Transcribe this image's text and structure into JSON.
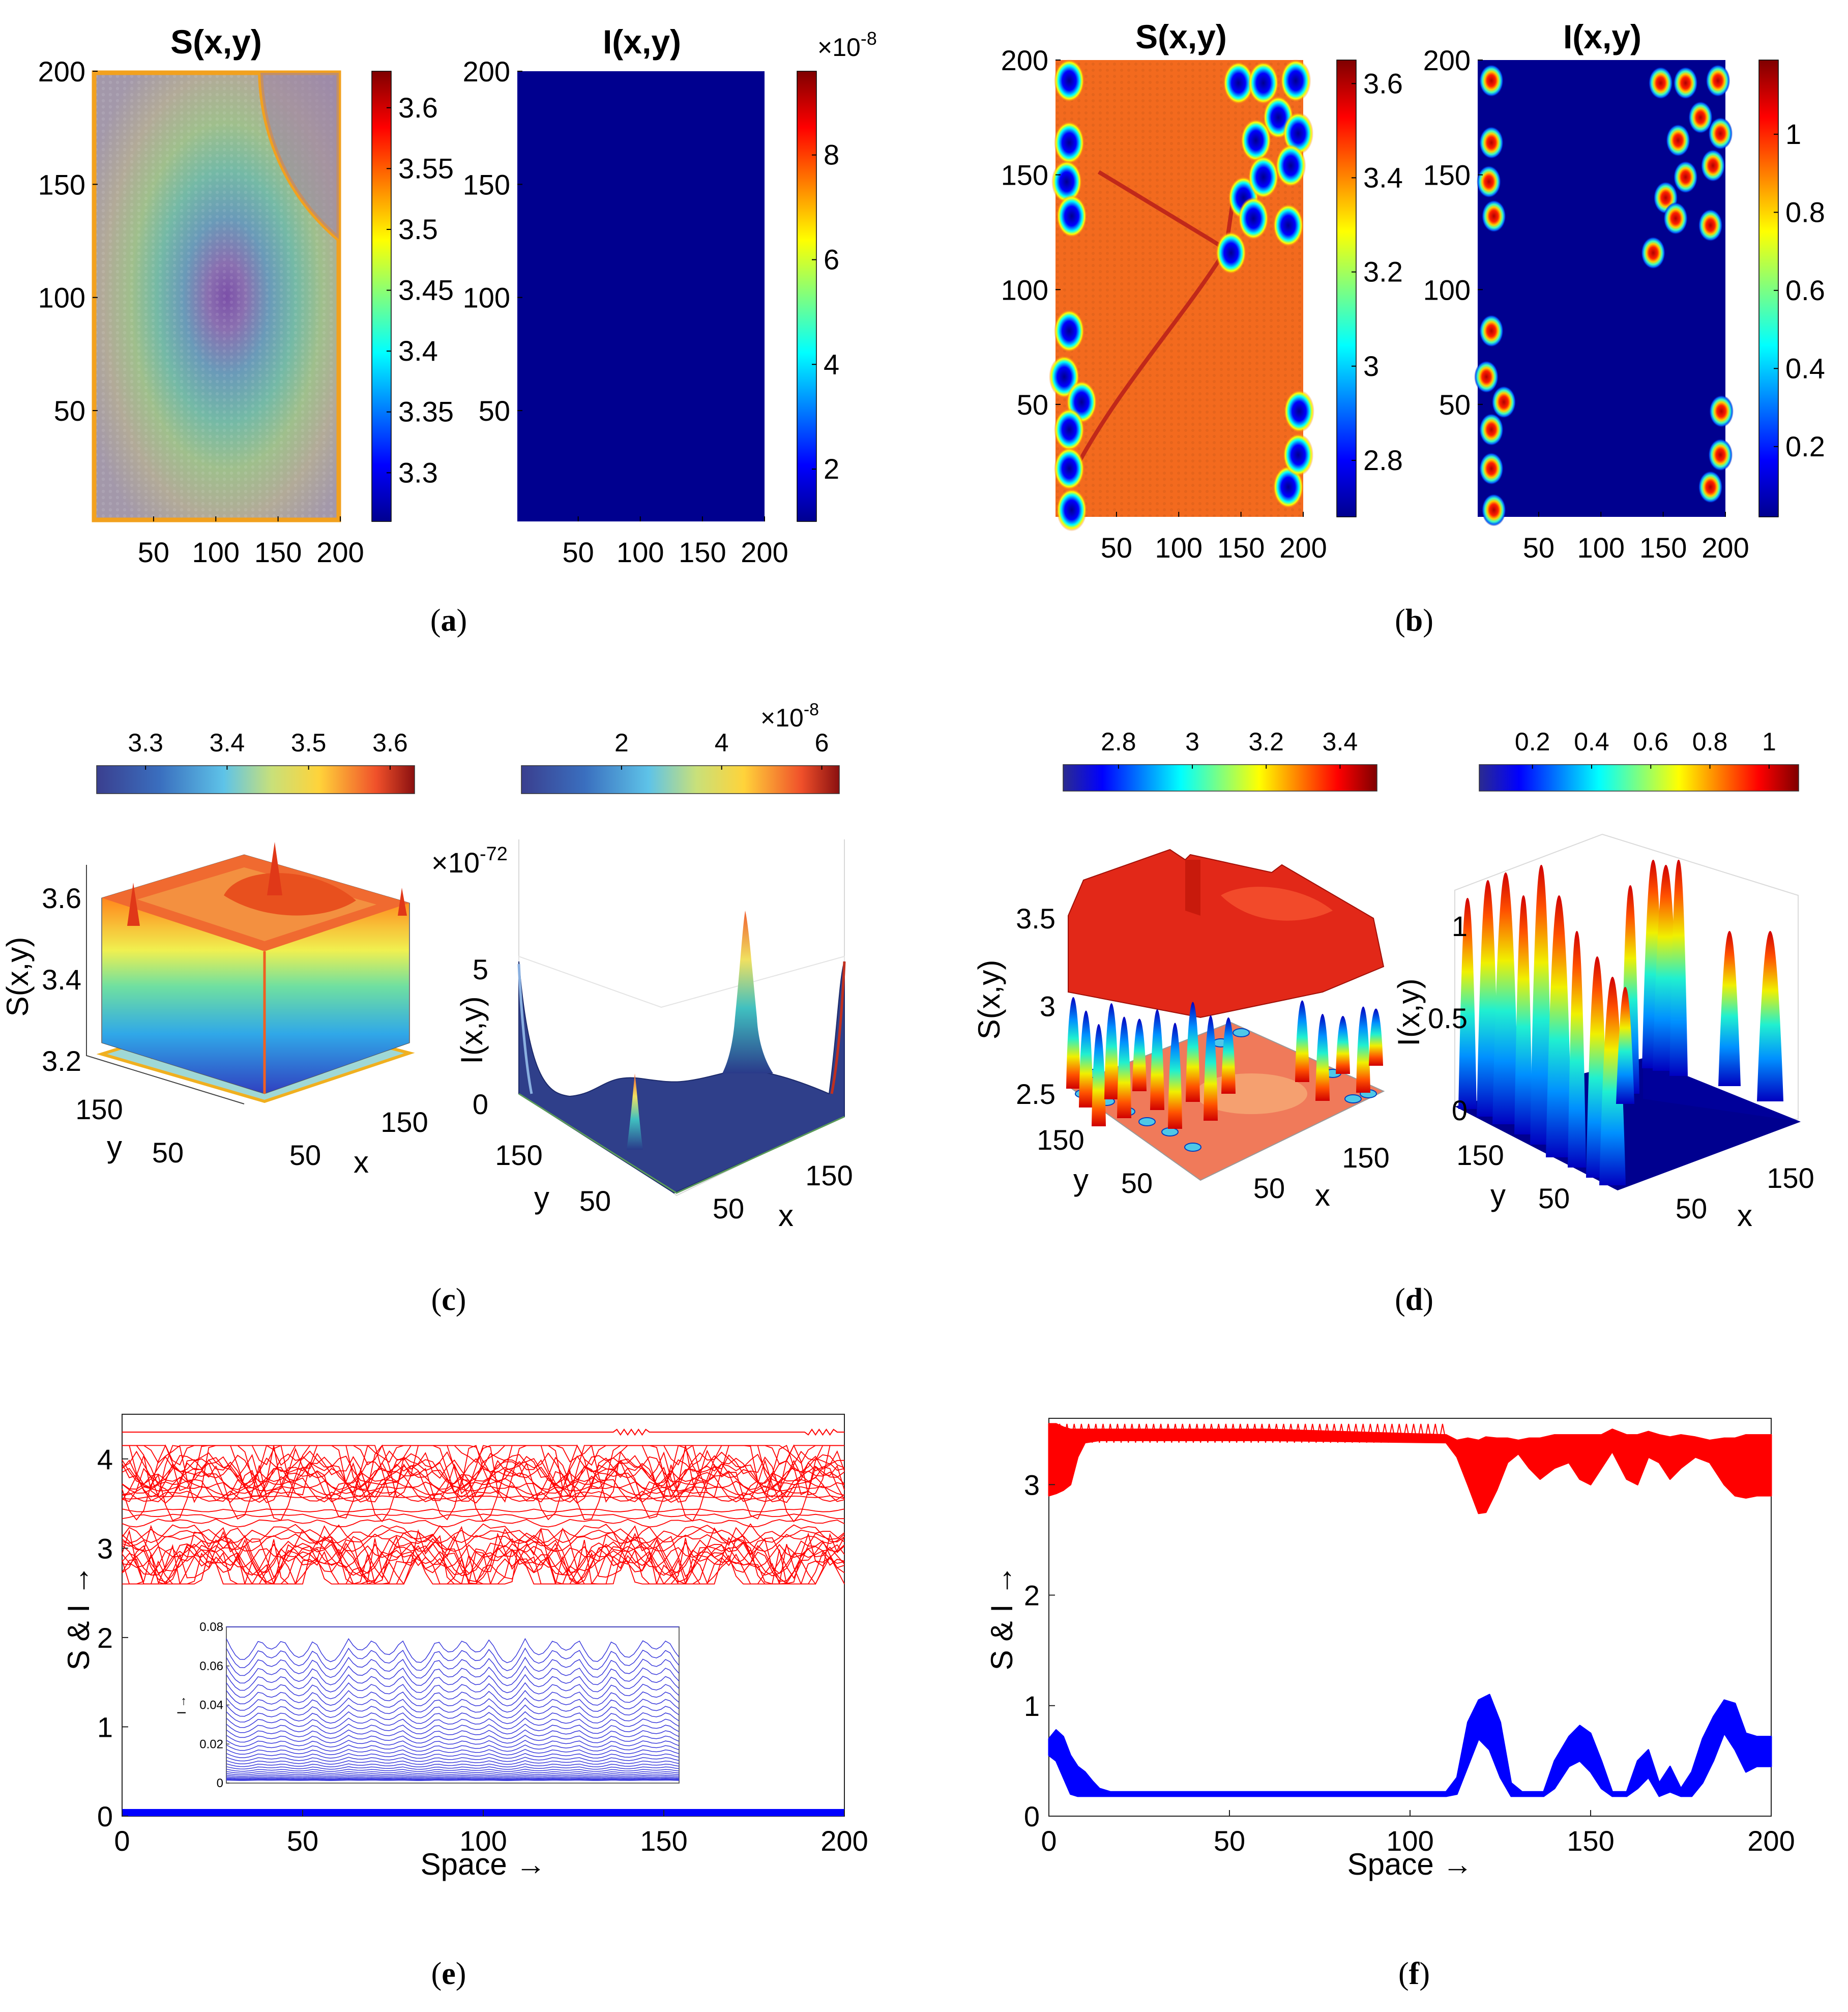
{
  "chart_data": [
    {
      "panel": "a",
      "type": "heatmap",
      "caption_label": "a",
      "subplots": [
        {
          "title": "S(x,y)",
          "xticks": [
            50,
            100,
            150,
            200
          ],
          "yticks": [
            50,
            100,
            150,
            200
          ],
          "xlim": [
            1,
            200
          ],
          "ylim": [
            1,
            200
          ],
          "colorbar": {
            "ticks": [
              "3.3",
              "3.35",
              "3.4",
              "3.45",
              "3.5",
              "3.55",
              "3.6"
            ],
            "range": [
              3.26,
              3.63
            ]
          },
          "description": "ring pattern with minimum near center (about 105,100)"
        },
        {
          "title": "I(x,y)",
          "xticks": [
            50,
            100,
            150,
            200
          ],
          "yticks": [
            50,
            100,
            150,
            200
          ],
          "xlim": [
            1,
            200
          ],
          "ylim": [
            1,
            200
          ],
          "colorbar": {
            "ticks": [
              "2",
              "4",
              "6",
              "8"
            ],
            "exponent": "×10^-8",
            "exp_base": "×10",
            "exp_power": "-8",
            "range": [
              1,
              9.6
            ]
          },
          "description": "uniform low value"
        }
      ]
    },
    {
      "panel": "b",
      "type": "heatmap",
      "caption_label": "b",
      "subplots": [
        {
          "title": "S(x,y)",
          "xticks": [
            50,
            100,
            150,
            200
          ],
          "yticks": [
            50,
            100,
            150,
            200
          ],
          "xlim": [
            1,
            200
          ],
          "ylim": [
            1,
            200
          ],
          "colorbar": {
            "ticks": [
              "2.8",
              "3",
              "3.2",
              "3.4",
              "3.6"
            ],
            "range": [
              2.68,
              3.65
            ]
          }
        },
        {
          "title": "I(x,y)",
          "xticks": [
            50,
            100,
            150,
            200
          ],
          "yticks": [
            50,
            100,
            150,
            200
          ],
          "xlim": [
            1,
            200
          ],
          "ylim": [
            1,
            200
          ],
          "colorbar": {
            "ticks": [
              "0.2",
              "0.4",
              "0.6",
              "0.8",
              "1"
            ],
            "range": [
              0.02,
              1.19
            ]
          }
        }
      ],
      "spots_xy": [
        [
          12,
          191
        ],
        [
          12,
          164
        ],
        [
          10,
          147
        ],
        [
          14,
          132
        ],
        [
          12,
          82
        ],
        [
          8,
          62
        ],
        [
          22,
          51
        ],
        [
          12,
          39
        ],
        [
          12,
          22
        ],
        [
          14,
          4
        ],
        [
          148,
          190
        ],
        [
          168,
          190
        ],
        [
          194,
          191
        ],
        [
          180,
          175
        ],
        [
          162,
          165
        ],
        [
          196,
          168
        ],
        [
          152,
          140
        ],
        [
          168,
          149
        ],
        [
          190,
          154
        ],
        [
          142,
          116
        ],
        [
          160,
          131
        ],
        [
          188,
          128
        ],
        [
          198,
          47
        ],
        [
          188,
          14
        ],
        [
          196,
          28
        ]
      ]
    },
    {
      "panel": "c",
      "type": "surface3d",
      "caption_label": "c",
      "subplots": [
        {
          "zlabel": "S(x,y)",
          "xlabel": "x",
          "ylabel": "y",
          "zticks": [
            "3.2",
            "3.4",
            "3.6"
          ],
          "xticks": [
            "50",
            "150"
          ],
          "yticks": [
            "50",
            "150"
          ],
          "colorbar": {
            "ticks": [
              "3.3",
              "3.4",
              "3.5",
              "3.6"
            ]
          }
        },
        {
          "zlabel": "I(x,y)",
          "xlabel": "x",
          "ylabel": "y",
          "zticks": [
            "0",
            "5"
          ],
          "xticks": [
            "50",
            "150"
          ],
          "yticks": [
            "50",
            "150"
          ],
          "z_exponent": "×10^-72",
          "z_exp_base": "×10",
          "z_exp_power": "-72",
          "colorbar": {
            "ticks": [
              "2",
              "4",
              "6"
            ],
            "exponent": "×10^-8",
            "exp_base": "×10",
            "exp_power": "-8"
          }
        }
      ]
    },
    {
      "panel": "d",
      "type": "surface3d",
      "caption_label": "d",
      "subplots": [
        {
          "zlabel": "S(x,y)",
          "xlabel": "x",
          "ylabel": "y",
          "zticks": [
            "2.5",
            "3",
            "3.5"
          ],
          "xticks": [
            "50",
            "150"
          ],
          "yticks": [
            "50",
            "150"
          ],
          "colorbar": {
            "ticks": [
              "2.8",
              "3",
              "3.2",
              "3.4"
            ]
          }
        },
        {
          "zlabel": "I(x,y)",
          "xlabel": "x",
          "ylabel": "y",
          "zticks": [
            "0",
            "0.5",
            "1"
          ],
          "xticks": [
            "50",
            "150"
          ],
          "yticks": [
            "50",
            "150"
          ],
          "colorbar": {
            "ticks": [
              "0.2",
              "0.4",
              "0.6",
              "0.8",
              "1"
            ]
          }
        }
      ]
    },
    {
      "panel": "e",
      "type": "line",
      "caption_label": "e",
      "xlabel": "Space →",
      "ylabel": "S & I →",
      "xlim": [
        0,
        200
      ],
      "ylim": [
        0,
        4.5
      ],
      "xticks": [
        "0",
        "50",
        "100",
        "150",
        "200"
      ],
      "yticks": [
        "0",
        "1",
        "2",
        "3",
        "4"
      ],
      "series": [
        {
          "name": "S",
          "color": "#ff0000",
          "approx_range": [
            2.6,
            4.3
          ]
        },
        {
          "name": "I",
          "color": "#0000ff",
          "approx_range": [
            0,
            0.08
          ]
        }
      ],
      "inset": {
        "ylabel": "I →",
        "ylim": [
          0,
          0.08
        ],
        "yticks": [
          "0",
          "0.02",
          "0.04",
          "0.06",
          "0.08"
        ],
        "xlim": [
          0,
          200
        ]
      }
    },
    {
      "panel": "f",
      "type": "line",
      "caption_label": "f",
      "xlabel": "Space →",
      "ylabel": "S & I →",
      "xlim": [
        0,
        200
      ],
      "ylim": [
        0,
        3.6
      ],
      "xticks": [
        "0",
        "50",
        "100",
        "150",
        "200"
      ],
      "yticks": [
        "0",
        "1",
        "2",
        "3"
      ],
      "series": [
        {
          "name": "S",
          "color": "#ff0000",
          "profile_x": [
            0,
            2,
            4,
            6,
            8,
            10,
            14,
            20,
            60,
            110,
            113,
            116,
            119,
            121,
            124,
            127,
            130,
            133,
            136,
            140,
            144,
            147,
            150,
            153,
            156,
            160,
            163,
            166,
            169,
            172,
            175,
            179,
            183,
            187,
            190,
            193,
            196,
            200
          ],
          "profile_low": [
            2.9,
            2.92,
            2.95,
            3.0,
            3.25,
            3.38,
            3.4,
            3.4,
            3.4,
            3.38,
            3.25,
            3.0,
            2.74,
            2.75,
            2.95,
            3.2,
            3.28,
            3.15,
            3.05,
            3.15,
            3.2,
            3.05,
            3.0,
            3.15,
            3.3,
            3.05,
            3.0,
            3.25,
            3.2,
            3.05,
            3.15,
            3.25,
            3.2,
            3.0,
            2.9,
            2.88,
            2.9,
            2.9
          ],
          "profile_high": [
            3.55,
            3.55,
            3.52,
            3.5,
            3.5,
            3.5,
            3.5,
            3.5,
            3.5,
            3.45,
            3.4,
            3.42,
            3.4,
            3.43,
            3.42,
            3.42,
            3.4,
            3.42,
            3.42,
            3.45,
            3.45,
            3.45,
            3.45,
            3.45,
            3.5,
            3.45,
            3.45,
            3.48,
            3.45,
            3.43,
            3.45,
            3.43,
            3.4,
            3.42,
            3.42,
            3.45,
            3.45,
            3.45
          ]
        },
        {
          "name": "I",
          "color": "#0000ff",
          "profile_x": [
            0,
            2,
            4,
            6,
            8,
            10,
            12,
            14,
            17,
            20,
            60,
            100,
            110,
            113,
            116,
            119,
            122,
            125,
            128,
            131,
            134,
            137,
            140,
            144,
            147,
            150,
            153,
            156,
            160,
            163,
            166,
            169,
            172,
            175,
            178,
            181,
            184,
            187,
            190,
            193,
            196,
            200
          ],
          "profile_high": [
            0.7,
            0.78,
            0.72,
            0.55,
            0.45,
            0.4,
            0.32,
            0.25,
            0.22,
            0.22,
            0.22,
            0.22,
            0.22,
            0.35,
            0.85,
            1.05,
            1.1,
            0.85,
            0.3,
            0.22,
            0.22,
            0.22,
            0.5,
            0.72,
            0.82,
            0.75,
            0.5,
            0.22,
            0.22,
            0.5,
            0.6,
            0.3,
            0.45,
            0.25,
            0.4,
            0.7,
            0.9,
            1.05,
            1.02,
            0.75,
            0.72,
            0.72
          ],
          "profile_low": [
            0.55,
            0.5,
            0.35,
            0.2,
            0.18,
            0.18,
            0.18,
            0.18,
            0.18,
            0.18,
            0.18,
            0.18,
            0.18,
            0.2,
            0.45,
            0.7,
            0.6,
            0.35,
            0.18,
            0.18,
            0.18,
            0.18,
            0.25,
            0.45,
            0.5,
            0.4,
            0.25,
            0.18,
            0.18,
            0.25,
            0.35,
            0.18,
            0.22,
            0.18,
            0.18,
            0.3,
            0.5,
            0.75,
            0.6,
            0.4,
            0.45,
            0.45
          ]
        }
      ]
    }
  ]
}
